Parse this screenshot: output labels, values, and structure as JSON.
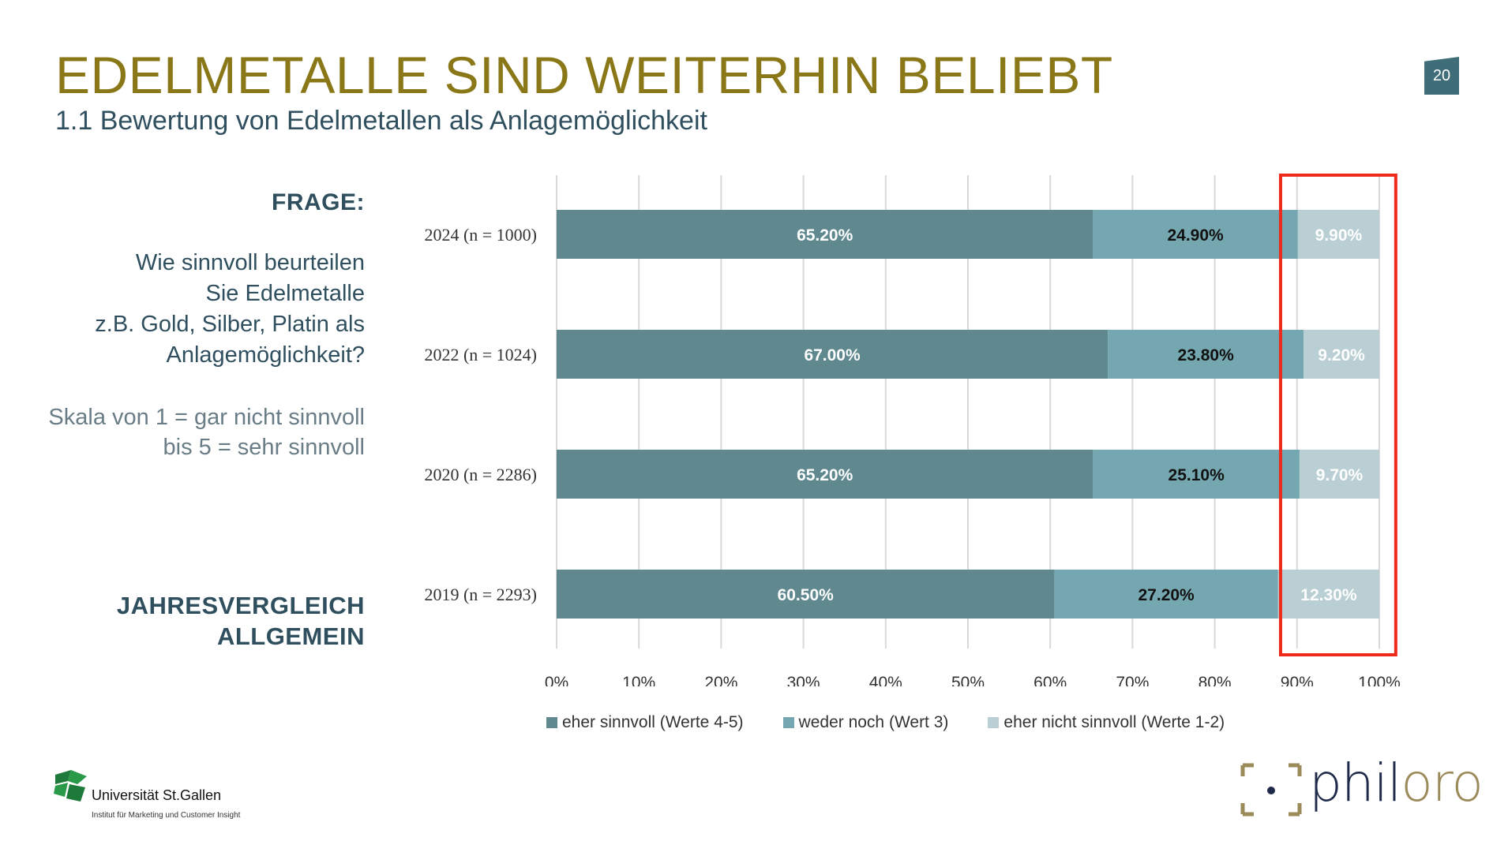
{
  "header": {
    "title": "EDELMETALLE SIND WEITERHIN BELIEBT",
    "subtitle": "1.1 Bewertung von Edelmetallen als Anlagemöglichkeit",
    "page_number": "20"
  },
  "question": {
    "heading": "FRAGE:",
    "text_lines": [
      "Wie sinnvoll beurteilen",
      "Sie Edelmetalle",
      "z.B. Gold, Silber, Platin als",
      "Anlagemöglichkeit?"
    ],
    "scale_lines": [
      "Skala von 1 = gar nicht sinnvoll",
      "bis 5 = sehr sinnvoll"
    ],
    "comparison_lines": [
      "JAHRESVERGLEICH",
      "ALLGEMEIN"
    ]
  },
  "colors": {
    "series": [
      "#5f898f",
      "#75a7b0",
      "#b9cfd3"
    ],
    "highlight": "#ee2a1a",
    "title": "#8a7818",
    "text": "#2f4f5f"
  },
  "chart_data": {
    "type": "bar",
    "orientation": "horizontal",
    "stacked": true,
    "categories": [
      "2024 (n = 1000)",
      "2022 (n = 1024)",
      "2020 (n = 2286)",
      "2019 (n = 2293)"
    ],
    "series": [
      {
        "name": "eher sinnvoll (Werte 4-5)",
        "values": [
          65.2,
          67.0,
          65.2,
          60.5
        ],
        "labels": [
          "65.20%",
          "67.00%",
          "65.20%",
          "60.50%"
        ]
      },
      {
        "name": "weder noch (Wert 3)",
        "values": [
          24.9,
          23.8,
          25.1,
          27.2
        ],
        "labels": [
          "24.90%",
          "23.80%",
          "25.10%",
          "27.20%"
        ]
      },
      {
        "name": "eher nicht sinnvoll (Werte 1-2)",
        "values": [
          9.9,
          9.2,
          9.7,
          12.3
        ],
        "labels": [
          "9.90%",
          "9.20%",
          "9.70%",
          "12.30%"
        ]
      }
    ],
    "xlim": [
      0,
      100
    ],
    "xticks": [
      "0%",
      "10%",
      "20%",
      "30%",
      "40%",
      "50%",
      "60%",
      "70%",
      "80%",
      "90%",
      "100%"
    ],
    "grid": true,
    "legend": "bottom",
    "highlight_range": [
      88,
      102
    ]
  },
  "footer": {
    "university_name": "Universität St.Gallen",
    "university_sub": "Institut für Marketing und Customer Insight",
    "brand": "philoro"
  }
}
